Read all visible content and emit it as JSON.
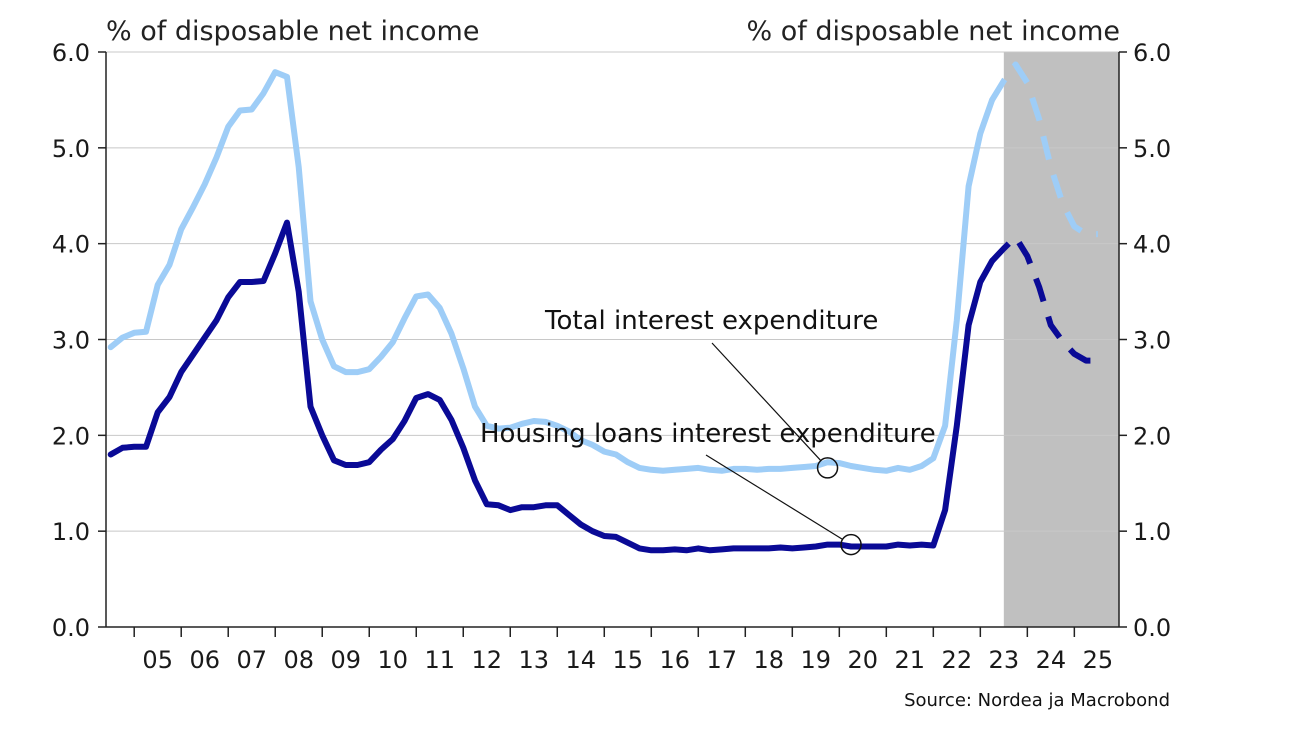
{
  "chart_data": {
    "type": "line",
    "left_axis_label": "% of disposable net income",
    "right_axis_label": "% of disposable net income",
    "source": "Source: Nordea ja Macrobond",
    "ylim": [
      0,
      6
    ],
    "xlim": [
      2004.4,
      2025.95
    ],
    "yticks": [
      "0.0",
      "1.0",
      "2.0",
      "3.0",
      "4.0",
      "5.0",
      "6.0"
    ],
    "xticks": [
      "05",
      "06",
      "07",
      "08",
      "09",
      "10",
      "11",
      "12",
      "13",
      "14",
      "15",
      "16",
      "17",
      "18",
      "19",
      "20",
      "21",
      "22",
      "23",
      "24",
      "25"
    ],
    "forecast_start": 2023.5,
    "grid": true,
    "colors": {
      "total": "#9ecdf7",
      "housing": "#0a0a96",
      "forecast_shade": "#c0c0c0"
    },
    "series": [
      {
        "name": "Total interest expenditure",
        "label_text": "Total interest expenditure",
        "color": "#9ecdf7",
        "points": [
          [
            2004.5,
            2.92
          ],
          [
            2004.75,
            3.02
          ],
          [
            2005.0,
            3.07
          ],
          [
            2005.25,
            3.08
          ],
          [
            2005.5,
            3.57
          ],
          [
            2005.75,
            3.78
          ],
          [
            2006.0,
            4.15
          ],
          [
            2006.25,
            4.38
          ],
          [
            2006.5,
            4.62
          ],
          [
            2006.75,
            4.9
          ],
          [
            2007.0,
            5.22
          ],
          [
            2007.25,
            5.39
          ],
          [
            2007.5,
            5.4
          ],
          [
            2007.75,
            5.57
          ],
          [
            2008.0,
            5.79
          ],
          [
            2008.25,
            5.74
          ],
          [
            2008.5,
            4.8
          ],
          [
            2008.75,
            3.4
          ],
          [
            2009.0,
            3.0
          ],
          [
            2009.25,
            2.72
          ],
          [
            2009.5,
            2.66
          ],
          [
            2009.75,
            2.66
          ],
          [
            2010.0,
            2.69
          ],
          [
            2010.25,
            2.82
          ],
          [
            2010.5,
            2.97
          ],
          [
            2010.75,
            3.22
          ],
          [
            2011.0,
            3.45
          ],
          [
            2011.25,
            3.47
          ],
          [
            2011.5,
            3.33
          ],
          [
            2011.75,
            3.06
          ],
          [
            2012.0,
            2.7
          ],
          [
            2012.25,
            2.3
          ],
          [
            2012.5,
            2.1
          ],
          [
            2012.75,
            2.07
          ],
          [
            2013.0,
            2.08
          ],
          [
            2013.25,
            2.12
          ],
          [
            2013.5,
            2.15
          ],
          [
            2013.75,
            2.14
          ],
          [
            2014.0,
            2.1
          ],
          [
            2014.25,
            2.04
          ],
          [
            2014.5,
            1.95
          ],
          [
            2014.75,
            1.9
          ],
          [
            2015.0,
            1.83
          ],
          [
            2015.25,
            1.8
          ],
          [
            2015.5,
            1.72
          ],
          [
            2015.75,
            1.66
          ],
          [
            2016.0,
            1.64
          ],
          [
            2016.25,
            1.63
          ],
          [
            2016.5,
            1.64
          ],
          [
            2016.75,
            1.65
          ],
          [
            2017.0,
            1.66
          ],
          [
            2017.25,
            1.64
          ],
          [
            2017.5,
            1.63
          ],
          [
            2017.75,
            1.65
          ],
          [
            2018.0,
            1.65
          ],
          [
            2018.25,
            1.64
          ],
          [
            2018.5,
            1.65
          ],
          [
            2018.75,
            1.65
          ],
          [
            2019.0,
            1.66
          ],
          [
            2019.25,
            1.67
          ],
          [
            2019.5,
            1.68
          ],
          [
            2019.75,
            1.72
          ],
          [
            2020.0,
            1.71
          ],
          [
            2020.25,
            1.68
          ],
          [
            2020.5,
            1.66
          ],
          [
            2020.75,
            1.64
          ],
          [
            2021.0,
            1.63
          ],
          [
            2021.25,
            1.66
          ],
          [
            2021.5,
            1.64
          ],
          [
            2021.75,
            1.68
          ],
          [
            2022.0,
            1.76
          ],
          [
            2022.25,
            2.1
          ],
          [
            2022.5,
            3.2
          ],
          [
            2022.75,
            4.6
          ],
          [
            2023.0,
            5.15
          ],
          [
            2023.25,
            5.5
          ]
        ],
        "forecast_points": [
          [
            2023.25,
            5.5
          ],
          [
            2023.5,
            5.7
          ],
          [
            2023.75,
            5.87
          ],
          [
            2024.0,
            5.68
          ],
          [
            2024.25,
            5.3
          ],
          [
            2024.5,
            4.8
          ],
          [
            2024.75,
            4.42
          ],
          [
            2025.0,
            4.18
          ],
          [
            2025.25,
            4.1
          ],
          [
            2025.5,
            4.1
          ]
        ]
      },
      {
        "name": "Housing loans interest expenditure",
        "label_text": "Housing loans interest expenditure",
        "color": "#0a0a96",
        "points": [
          [
            2004.5,
            1.8
          ],
          [
            2004.75,
            1.87
          ],
          [
            2005.0,
            1.88
          ],
          [
            2005.25,
            1.88
          ],
          [
            2005.5,
            2.24
          ],
          [
            2005.75,
            2.4
          ],
          [
            2006.0,
            2.66
          ],
          [
            2006.25,
            2.84
          ],
          [
            2006.5,
            3.02
          ],
          [
            2006.75,
            3.2
          ],
          [
            2007.0,
            3.44
          ],
          [
            2007.25,
            3.6
          ],
          [
            2007.5,
            3.6
          ],
          [
            2007.75,
            3.61
          ],
          [
            2008.0,
            3.9
          ],
          [
            2008.25,
            4.22
          ],
          [
            2008.5,
            3.5
          ],
          [
            2008.75,
            2.3
          ],
          [
            2009.0,
            2.0
          ],
          [
            2009.25,
            1.74
          ],
          [
            2009.5,
            1.69
          ],
          [
            2009.75,
            1.69
          ],
          [
            2010.0,
            1.72
          ],
          [
            2010.25,
            1.85
          ],
          [
            2010.5,
            1.96
          ],
          [
            2010.75,
            2.15
          ],
          [
            2011.0,
            2.39
          ],
          [
            2011.25,
            2.43
          ],
          [
            2011.5,
            2.37
          ],
          [
            2011.75,
            2.16
          ],
          [
            2012.0,
            1.87
          ],
          [
            2012.25,
            1.53
          ],
          [
            2012.5,
            1.28
          ],
          [
            2012.75,
            1.27
          ],
          [
            2013.0,
            1.22
          ],
          [
            2013.25,
            1.25
          ],
          [
            2013.5,
            1.25
          ],
          [
            2013.75,
            1.27
          ],
          [
            2014.0,
            1.27
          ],
          [
            2014.25,
            1.17
          ],
          [
            2014.5,
            1.07
          ],
          [
            2014.75,
            1.0
          ],
          [
            2015.0,
            0.95
          ],
          [
            2015.25,
            0.94
          ],
          [
            2015.5,
            0.88
          ],
          [
            2015.75,
            0.82
          ],
          [
            2016.0,
            0.8
          ],
          [
            2016.25,
            0.8
          ],
          [
            2016.5,
            0.81
          ],
          [
            2016.75,
            0.8
          ],
          [
            2017.0,
            0.82
          ],
          [
            2017.25,
            0.8
          ],
          [
            2017.5,
            0.81
          ],
          [
            2017.75,
            0.82
          ],
          [
            2018.0,
            0.82
          ],
          [
            2018.25,
            0.82
          ],
          [
            2018.5,
            0.82
          ],
          [
            2018.75,
            0.83
          ],
          [
            2019.0,
            0.82
          ],
          [
            2019.25,
            0.83
          ],
          [
            2019.5,
            0.84
          ],
          [
            2019.75,
            0.86
          ],
          [
            2020.0,
            0.86
          ],
          [
            2020.25,
            0.84
          ],
          [
            2020.5,
            0.84
          ],
          [
            2020.75,
            0.84
          ],
          [
            2021.0,
            0.84
          ],
          [
            2021.25,
            0.86
          ],
          [
            2021.5,
            0.85
          ],
          [
            2021.75,
            0.86
          ],
          [
            2022.0,
            0.85
          ],
          [
            2022.25,
            1.22
          ],
          [
            2022.5,
            2.1
          ],
          [
            2022.75,
            3.15
          ],
          [
            2023.0,
            3.6
          ],
          [
            2023.25,
            3.82
          ]
        ],
        "forecast_points": [
          [
            2023.25,
            3.82
          ],
          [
            2023.5,
            3.95
          ],
          [
            2023.75,
            4.07
          ],
          [
            2024.0,
            3.87
          ],
          [
            2024.25,
            3.55
          ],
          [
            2024.5,
            3.15
          ],
          [
            2024.75,
            2.98
          ],
          [
            2025.0,
            2.85
          ],
          [
            2025.25,
            2.78
          ],
          [
            2025.5,
            2.78
          ]
        ]
      }
    ],
    "annotations": [
      {
        "series": "Total interest expenditure",
        "text": "Total interest expenditure",
        "point": [
          2019.75,
          1.66
        ]
      },
      {
        "series": "Housing loans interest expenditure",
        "text": "Housing loans interest expenditure",
        "point": [
          2020.25,
          0.86
        ]
      }
    ]
  }
}
